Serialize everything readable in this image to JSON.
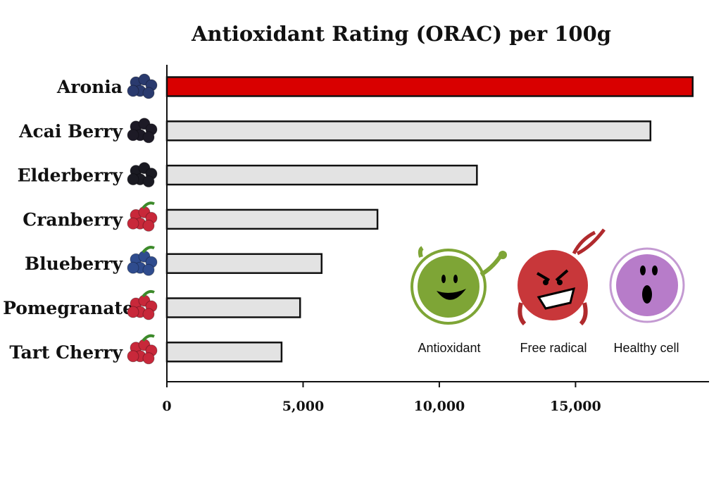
{
  "chart_data": {
    "type": "bar",
    "orientation": "horizontal",
    "title": "Antioxidant Rating (ORAC) per 100g",
    "xlabel": "",
    "ylabel": "",
    "categories": [
      "Aronia",
      "Acai Berry",
      "Elderberry",
      "Cranberry",
      "Blueberry",
      "Pomegranate",
      "Tart Cherry"
    ],
    "values": [
      19300,
      17750,
      11380,
      7730,
      5680,
      4890,
      4210
    ],
    "highlight_index": 0,
    "xlim": [
      0,
      19900
    ],
    "xticks": [
      0,
      5000,
      10000,
      15000
    ],
    "xtick_labels": [
      "0",
      "5,000",
      "10,000",
      "15,000"
    ],
    "grid": false,
    "colors": {
      "highlight": "#d90000",
      "bar": "#e3e3e3",
      "outline": "#111111"
    },
    "fruit_icons": [
      "aronia-berries-icon",
      "acai-berries-icon",
      "elderberries-icon",
      "cranberries-icon",
      "blueberries-icon",
      "pomegranate-icon",
      "tart-cherry-icon"
    ],
    "legend": {
      "placement": "bottom-right",
      "items": [
        {
          "label": "Antioxidant",
          "color": "#7ea536"
        },
        {
          "label": "Free radical",
          "color": "#c8373a"
        },
        {
          "label": "Healthy cell",
          "color": "#b77cc9"
        }
      ]
    }
  }
}
